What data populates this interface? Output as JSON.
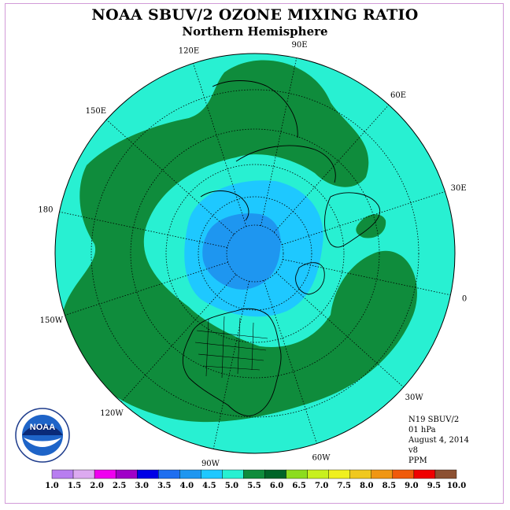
{
  "title": "NOAA SBUV/2 OZONE MIXING RATIO",
  "subtitle": "Northern Hemisphere",
  "longitude_labels": [
    {
      "text": "90E"
    },
    {
      "text": "60E"
    },
    {
      "text": "30E"
    },
    {
      "text": "0"
    },
    {
      "text": "30W"
    },
    {
      "text": "60W"
    },
    {
      "text": "90W"
    },
    {
      "text": "120W"
    },
    {
      "text": "150W"
    },
    {
      "text": "180"
    },
    {
      "text": "150E"
    },
    {
      "text": "120E"
    }
  ],
  "info": {
    "instrument": "N19 SBUV/2",
    "pressure": "01 hPa",
    "date": "August 4, 2014",
    "version": "v8",
    "units": "PPM"
  },
  "logo_text": "NOAA",
  "colorbar": {
    "ticks": [
      "1.0",
      "1.5",
      "2.0",
      "2.5",
      "3.0",
      "3.5",
      "4.0",
      "4.5",
      "5.0",
      "5.5",
      "6.0",
      "6.5",
      "7.0",
      "7.5",
      "8.0",
      "8.5",
      "9.0",
      "9.5",
      "10.0"
    ],
    "colors": [
      "#b87ef0",
      "#dcaaf0",
      "#f000f0",
      "#a000c8",
      "#0000e6",
      "#1e6ef0",
      "#1e96f0",
      "#1ec8ff",
      "#28f0d2",
      "#0f8c3c",
      "#006428",
      "#8cdc1e",
      "#c8f01e",
      "#f0f01e",
      "#f0c81e",
      "#f09614",
      "#f05a0a",
      "#f00000",
      "#8c5032"
    ]
  },
  "colors": {
    "light_blue": "#1ec8ff",
    "mid_blue": "#1e96f0",
    "cyan": "#28f0d2",
    "green": "#0f8c3c",
    "frame": "#d29bd8"
  }
}
